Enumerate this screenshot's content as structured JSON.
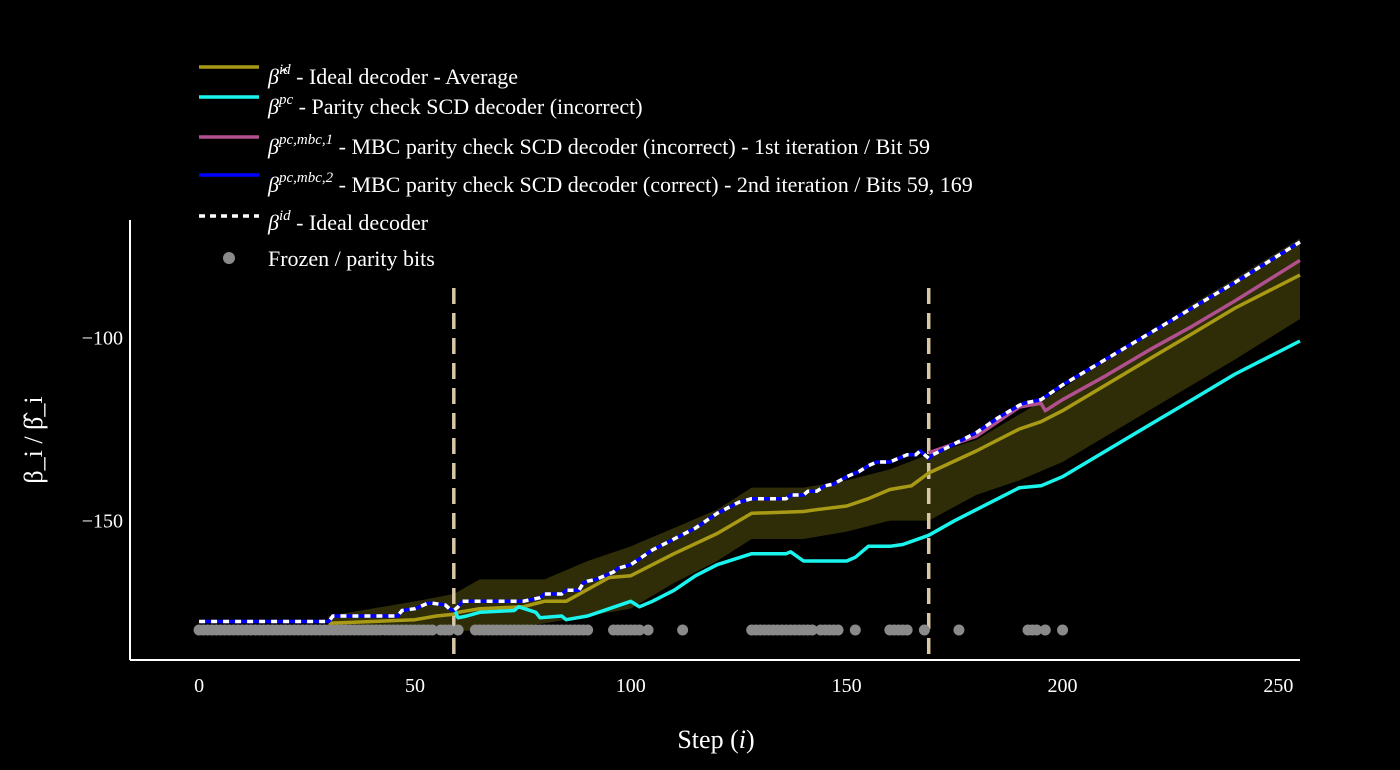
{
  "chart_data": {
    "type": "line",
    "xlabel": "Step (i)",
    "ylabel": "β_i / β̂_i",
    "xlim": [
      -16,
      255
    ],
    "ylim": [
      -188,
      -68
    ],
    "xticks": [
      0,
      50,
      100,
      150,
      200,
      250
    ],
    "yticks": [
      -100,
      -150
    ],
    "grid": false,
    "legend_position": "top-left",
    "colors": {
      "average": "#a89a14",
      "band": "#2f2c08",
      "pc": "#19f5ee",
      "mbc1": "#b1508e",
      "mbc2": "#0000ff",
      "ideal": "#ffffff",
      "frozen": "#8a8a8a",
      "vline": "#d8c8a8"
    },
    "legend": [
      {
        "key": "average",
        "symbol": "β̂",
        "sup": "id",
        "text": "- Ideal decoder - Average"
      },
      {
        "key": "pc",
        "symbol": "β",
        "sup": "pc",
        "text": "- Parity check SCD decoder (incorrect)"
      },
      {
        "key": "mbc1",
        "symbol": "β",
        "sup": "pc,mbc,1",
        "text": "- MBC parity check SCD decoder (incorrect) - 1st iteration / Bit 59"
      },
      {
        "key": "mbc2",
        "symbol": "β",
        "sup": "pc,mbc,2",
        "text": "- MBC parity check SCD decoder (correct) - 2nd iteration / Bits 59, 169"
      },
      {
        "key": "ideal",
        "symbol": "β",
        "sup": "id",
        "text": "- Ideal decoder"
      },
      {
        "key": "frozen",
        "symbol": "",
        "sup": "",
        "text": "Frozen / parity bits"
      }
    ],
    "vlines": [
      59,
      169
    ],
    "band": {
      "x": [
        30,
        50,
        59,
        65,
        80,
        90,
        100,
        110,
        120,
        128,
        140,
        150,
        160,
        169,
        180,
        190,
        200,
        210,
        220,
        230,
        240,
        255
      ],
      "upper": [
        -176,
        -172,
        -170,
        -166,
        -166,
        -161,
        -157,
        -152,
        -147,
        -141,
        -141,
        -139,
        -136,
        -132,
        -128,
        -121,
        -114,
        -106,
        -99,
        -91,
        -84,
        -73
      ],
      "lower": [
        -180,
        -180,
        -180,
        -180,
        -178,
        -176,
        -174,
        -167,
        -161,
        -155,
        -155,
        -153,
        -150,
        -150,
        -143,
        -139,
        -134,
        -127,
        -120,
        -113,
        -106,
        -95
      ]
    },
    "series": [
      {
        "key": "average",
        "x": [
          30,
          50,
          55,
          59,
          60,
          65,
          75,
          80,
          85,
          95,
          100,
          110,
          120,
          128,
          140,
          143,
          150,
          155,
          160,
          165,
          169,
          180,
          190,
          195,
          200,
          210,
          220,
          230,
          240,
          255
        ],
        "y": [
          -178,
          -177,
          -176,
          -175.5,
          -175,
          -174,
          -173.5,
          -172,
          -172,
          -165.5,
          -165,
          -159,
          -153.5,
          -148,
          -147.5,
          -147,
          -146,
          -144,
          -141.5,
          -140.5,
          -137,
          -131,
          -125,
          -123,
          -120,
          -113,
          -106,
          -99,
          -92,
          -83
        ]
      },
      {
        "key": "pc",
        "x": [
          59,
          60,
          62,
          65,
          73,
          74,
          78,
          79,
          84,
          85,
          90,
          95,
          100,
          102,
          105,
          110,
          115,
          120,
          128,
          136,
          137,
          140,
          150,
          152,
          155,
          160,
          163,
          169,
          175,
          180,
          190,
          195,
          200,
          210,
          220,
          230,
          240,
          255
        ],
        "y": [
          -174,
          -176.5,
          -176,
          -175,
          -174.5,
          -173.5,
          -175,
          -176.5,
          -176,
          -177,
          -176,
          -174,
          -172,
          -173.5,
          -172,
          -169,
          -165,
          -162,
          -159,
          -159,
          -158.5,
          -161,
          -161,
          -160,
          -157,
          -157,
          -156.5,
          -154,
          -150,
          -147,
          -141,
          -140.5,
          -138,
          -131,
          -124,
          -117,
          -110,
          -101
        ]
      },
      {
        "key": "mbc1",
        "x": [
          169,
          175,
          180,
          185,
          190,
          195,
          196,
          200,
          210,
          220,
          230,
          240,
          255
        ],
        "y": [
          -131.5,
          -129,
          -127,
          -123,
          -119,
          -118,
          -120,
          -117,
          -110.5,
          -103.5,
          -97,
          -90,
          -79
        ]
      },
      {
        "key": "mbc2",
        "x": [
          0,
          30,
          31,
          46,
          47,
          50,
          53,
          54,
          57,
          58,
          59,
          60,
          61,
          65,
          70,
          75,
          79,
          80,
          84,
          85,
          88,
          89,
          90,
          92,
          96,
          97,
          100,
          105,
          110,
          115,
          120,
          125,
          128,
          136,
          137,
          140,
          141,
          143,
          145,
          147,
          150,
          152,
          153,
          155,
          157,
          160,
          163,
          164,
          166,
          167,
          169,
          170,
          175,
          180,
          185,
          190,
          191,
          195,
          200,
          210,
          220,
          230,
          240,
          255
        ],
        "y": [
          -177.5,
          -177.5,
          -176,
          -176,
          -174.5,
          -174,
          -172.5,
          -172.5,
          -173,
          -174,
          -174.5,
          -173.5,
          -172,
          -172,
          -172,
          -172,
          -171,
          -170,
          -170,
          -169,
          -169,
          -167,
          -166.5,
          -166,
          -164,
          -163,
          -162,
          -158,
          -155,
          -152,
          -148,
          -145,
          -144,
          -144,
          -143,
          -143,
          -142,
          -142,
          -140.5,
          -140,
          -138,
          -137,
          -136.5,
          -135,
          -134,
          -134,
          -132.5,
          -132,
          -132,
          -131,
          -133,
          -132,
          -129,
          -126,
          -122,
          -118.5,
          -118,
          -117,
          -113,
          -106,
          -99,
          -92,
          -85,
          -74
        ]
      }
    ],
    "frozen_bits": [
      0,
      1,
      2,
      3,
      4,
      5,
      6,
      7,
      8,
      9,
      10,
      11,
      12,
      13,
      14,
      15,
      16,
      17,
      18,
      19,
      20,
      21,
      22,
      23,
      24,
      25,
      26,
      27,
      28,
      29,
      30,
      31,
      32,
      33,
      34,
      35,
      36,
      37,
      38,
      39,
      40,
      41,
      42,
      43,
      44,
      45,
      46,
      47,
      48,
      49,
      50,
      51,
      52,
      53,
      54,
      56,
      57,
      58,
      60,
      64,
      65,
      66,
      67,
      68,
      69,
      70,
      71,
      72,
      73,
      74,
      75,
      76,
      77,
      78,
      79,
      80,
      81,
      82,
      83,
      84,
      85,
      86,
      87,
      88,
      89,
      90,
      96,
      97,
      98,
      99,
      100,
      101,
      102,
      104,
      112,
      128,
      129,
      130,
      131,
      132,
      133,
      134,
      135,
      136,
      137,
      138,
      139,
      140,
      141,
      142,
      144,
      145,
      146,
      147,
      148,
      152,
      160,
      161,
      162,
      163,
      164,
      168,
      176,
      192,
      193,
      194,
      196,
      200
    ]
  }
}
